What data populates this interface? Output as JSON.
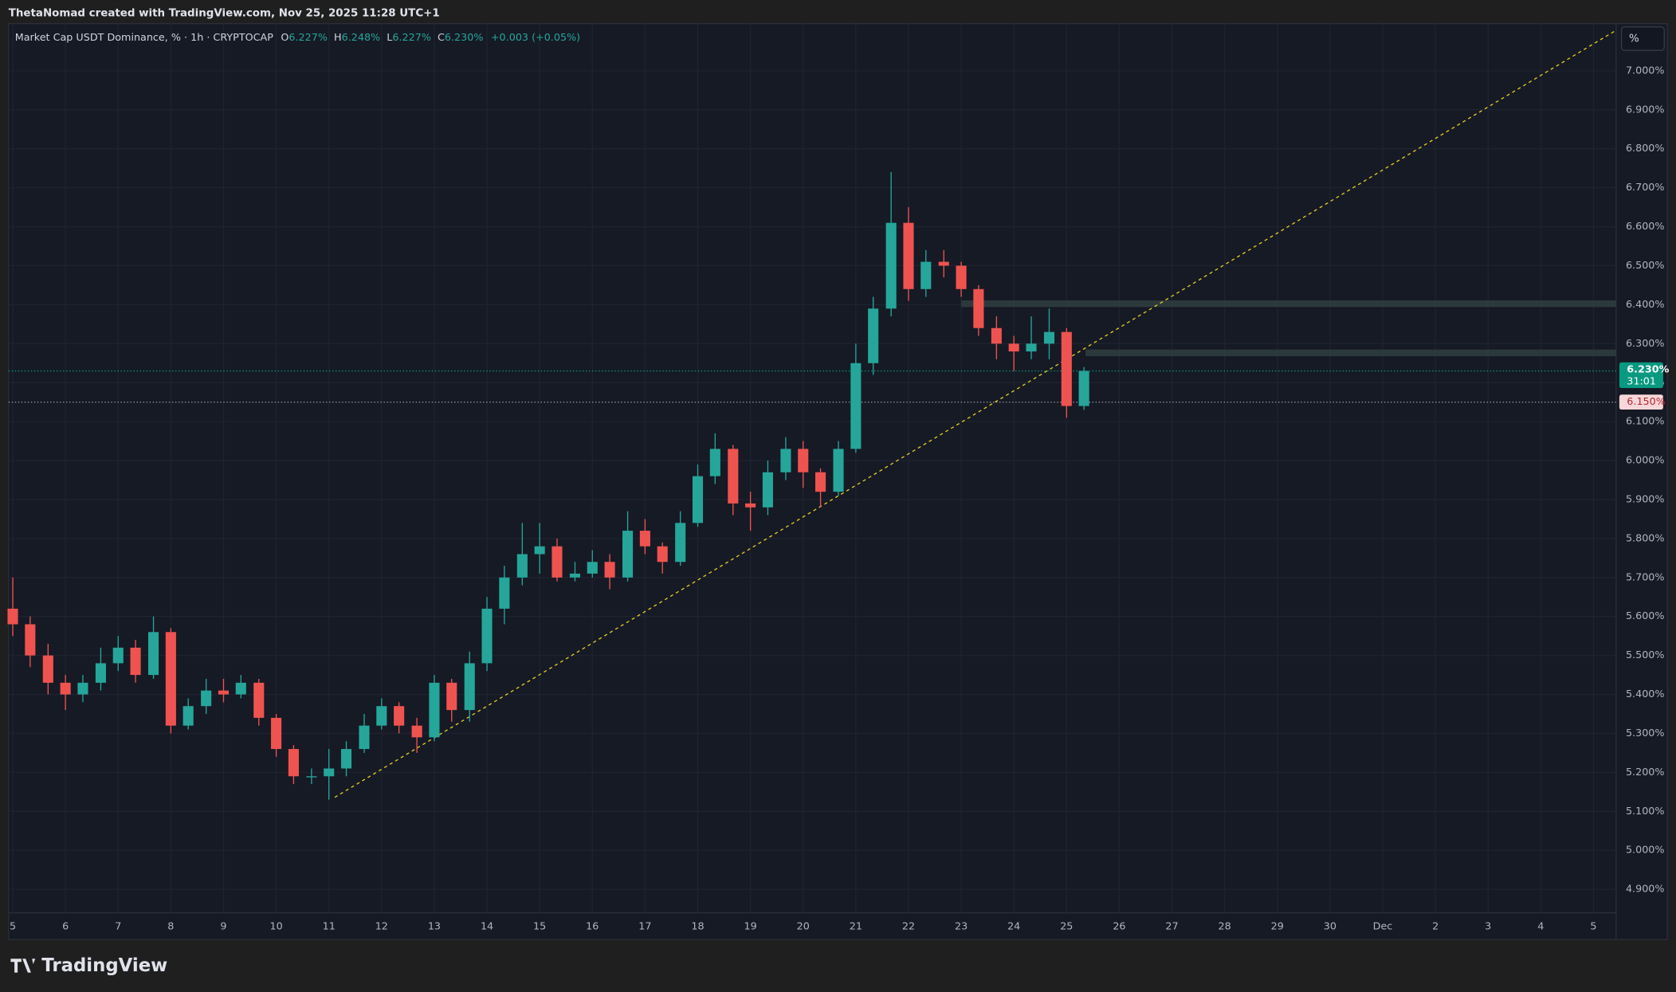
{
  "chart_data": {
    "type": "candlestick",
    "header": "ThetaNomad created with TradingView.com, Nov 25, 2025 11:28 UTC+1",
    "legend": {
      "title": "Market Cap USDT Dominance, % · 1h · CRYPTOCAP",
      "o_label": "O",
      "o": "6.227%",
      "h_label": "H",
      "h": "6.248%",
      "l_label": "L",
      "l": "6.227%",
      "c_label": "C",
      "c": "6.230%",
      "change": "+0.003 (+0.05%)"
    },
    "logo": "TradingView",
    "scale_button": "%",
    "up_color": "#26a69a",
    "down_color": "#ef5350",
    "grid": true,
    "x": [
      5.0,
      5.33,
      5.67,
      6.0,
      6.33,
      6.67,
      7.0,
      7.33,
      7.67,
      8.0,
      8.33,
      8.67,
      9.0,
      9.33,
      9.67,
      10.0,
      10.33,
      10.67,
      11.0,
      11.33,
      11.67,
      12.0,
      12.33,
      12.67,
      13.0,
      13.33,
      13.67,
      14.0,
      14.33,
      14.67,
      15.0,
      15.33,
      15.67,
      16.0,
      16.33,
      16.67,
      17.0,
      17.33,
      17.67,
      18.0,
      18.33,
      18.67,
      19.0,
      19.33,
      19.67,
      20.0,
      20.33,
      20.67,
      21.0,
      21.33,
      21.67,
      22.0,
      22.33,
      22.67,
      23.0,
      23.33,
      23.67,
      24.0,
      24.33,
      24.67,
      25.0,
      25.33
    ],
    "open": [
      5.62,
      5.58,
      5.5,
      5.43,
      5.4,
      5.43,
      5.48,
      5.52,
      5.45,
      5.56,
      5.32,
      5.37,
      5.41,
      5.4,
      5.43,
      5.34,
      5.26,
      5.19,
      5.19,
      5.21,
      5.26,
      5.32,
      5.37,
      5.32,
      5.29,
      5.43,
      5.36,
      5.48,
      5.62,
      5.7,
      5.76,
      5.78,
      5.7,
      5.71,
      5.74,
      5.7,
      5.82,
      5.78,
      5.74,
      5.84,
      5.96,
      6.03,
      5.89,
      5.88,
      5.97,
      6.03,
      5.97,
      5.92,
      6.03,
      6.25,
      6.39,
      6.61,
      6.44,
      6.51,
      6.5,
      6.44,
      6.34,
      6.3,
      6.28,
      6.3,
      6.33,
      6.14
    ],
    "high": [
      5.7,
      5.6,
      5.53,
      5.45,
      5.45,
      5.52,
      5.55,
      5.54,
      5.6,
      5.57,
      5.39,
      5.44,
      5.44,
      5.45,
      5.44,
      5.35,
      5.27,
      5.21,
      5.26,
      5.28,
      5.35,
      5.39,
      5.38,
      5.34,
      5.45,
      5.44,
      5.51,
      5.65,
      5.73,
      5.84,
      5.84,
      5.8,
      5.74,
      5.77,
      5.76,
      5.87,
      5.85,
      5.79,
      5.87,
      5.99,
      6.07,
      6.04,
      5.92,
      6.0,
      6.06,
      6.05,
      5.98,
      6.05,
      6.3,
      6.42,
      6.74,
      6.65,
      6.54,
      6.54,
      6.51,
      6.45,
      6.37,
      6.32,
      6.37,
      6.39,
      6.34,
      6.24
    ],
    "low": [
      5.55,
      5.47,
      5.4,
      5.36,
      5.38,
      5.41,
      5.46,
      5.43,
      5.44,
      5.3,
      5.31,
      5.35,
      5.38,
      5.39,
      5.32,
      5.24,
      5.17,
      5.17,
      5.13,
      5.19,
      5.25,
      5.31,
      5.3,
      5.25,
      5.28,
      5.33,
      5.33,
      5.46,
      5.58,
      5.68,
      5.71,
      5.69,
      5.69,
      5.7,
      5.67,
      5.69,
      5.76,
      5.71,
      5.73,
      5.83,
      5.94,
      5.86,
      5.82,
      5.86,
      5.95,
      5.93,
      5.88,
      5.91,
      6.02,
      6.22,
      6.37,
      6.41,
      6.42,
      6.47,
      6.42,
      6.32,
      6.26,
      6.23,
      6.26,
      6.26,
      6.11,
      6.13
    ],
    "close": [
      5.58,
      5.5,
      5.43,
      5.4,
      5.43,
      5.48,
      5.52,
      5.45,
      5.56,
      5.32,
      5.37,
      5.41,
      5.4,
      5.43,
      5.34,
      5.26,
      5.19,
      5.19,
      5.21,
      5.26,
      5.32,
      5.37,
      5.32,
      5.29,
      5.43,
      5.36,
      5.48,
      5.62,
      5.7,
      5.76,
      5.78,
      5.7,
      5.71,
      5.74,
      5.7,
      5.82,
      5.78,
      5.74,
      5.84,
      5.96,
      6.03,
      5.89,
      5.88,
      5.97,
      6.03,
      5.97,
      5.92,
      6.03,
      6.25,
      6.39,
      6.61,
      6.44,
      6.51,
      6.5,
      6.44,
      6.34,
      6.3,
      6.28,
      6.3,
      6.33,
      6.14,
      6.23
    ],
    "xlim": [
      4.92,
      35.43
    ],
    "ylim": [
      4.774,
      7.121
    ],
    "xticks": [
      5,
      6,
      7,
      8,
      9,
      10,
      11,
      12,
      13,
      14,
      15,
      16,
      17,
      18,
      19,
      20,
      21,
      22,
      23,
      24,
      25,
      26,
      27,
      28,
      29,
      30,
      {
        "value": 31,
        "label": "Dec"
      },
      {
        "value": 32,
        "label": "2"
      },
      {
        "value": 33,
        "label": "3"
      },
      {
        "value": 34,
        "label": "4"
      },
      {
        "value": 35,
        "label": "5"
      }
    ],
    "yticks": [
      {
        "value": 4.9,
        "label": "4.900%"
      },
      {
        "value": 5.0,
        "label": "5.000%"
      },
      {
        "value": 5.1,
        "label": "5.100%"
      },
      {
        "value": 5.2,
        "label": "5.200%"
      },
      {
        "value": 5.3,
        "label": "5.300%"
      },
      {
        "value": 5.4,
        "label": "5.400%"
      },
      {
        "value": 5.5,
        "label": "5.500%"
      },
      {
        "value": 5.6,
        "label": "5.600%"
      },
      {
        "value": 5.7,
        "label": "5.700%"
      },
      {
        "value": 5.8,
        "label": "5.800%"
      },
      {
        "value": 5.9,
        "label": "5.900%"
      },
      {
        "value": 6.0,
        "label": "6.000%"
      },
      {
        "value": 6.1,
        "label": "6.100%"
      },
      {
        "value": 6.2,
        "label": "6.200%"
      },
      {
        "value": 6.3,
        "label": "6.300%"
      },
      {
        "value": 6.4,
        "label": "6.400%"
      },
      {
        "value": 6.5,
        "label": "6.500%"
      },
      {
        "value": 6.6,
        "label": "6.600%"
      },
      {
        "value": 6.7,
        "label": "6.700%"
      },
      {
        "value": 6.8,
        "label": "6.800%"
      },
      {
        "value": 6.9,
        "label": "6.900%"
      },
      {
        "value": 7.0,
        "label": "7.000%"
      }
    ],
    "last_price": {
      "value": 6.23,
      "label": "6.230%",
      "countdown": "31:01",
      "color": "#089981"
    },
    "level_line": {
      "value": 6.15,
      "label": "6.150%",
      "color": "#f7d7d9"
    },
    "trendline": {
      "x": [
        11.11,
        35.43
      ],
      "y": [
        5.136,
        7.104
      ],
      "color": "#e3c928"
    },
    "zones": [
      {
        "from": 23.0,
        "low": 6.394,
        "high": 6.411,
        "color": "#2f3d3f"
      },
      {
        "from": 25.36,
        "low": 6.268,
        "high": 6.285,
        "color": "#2f3d3f"
      }
    ]
  }
}
